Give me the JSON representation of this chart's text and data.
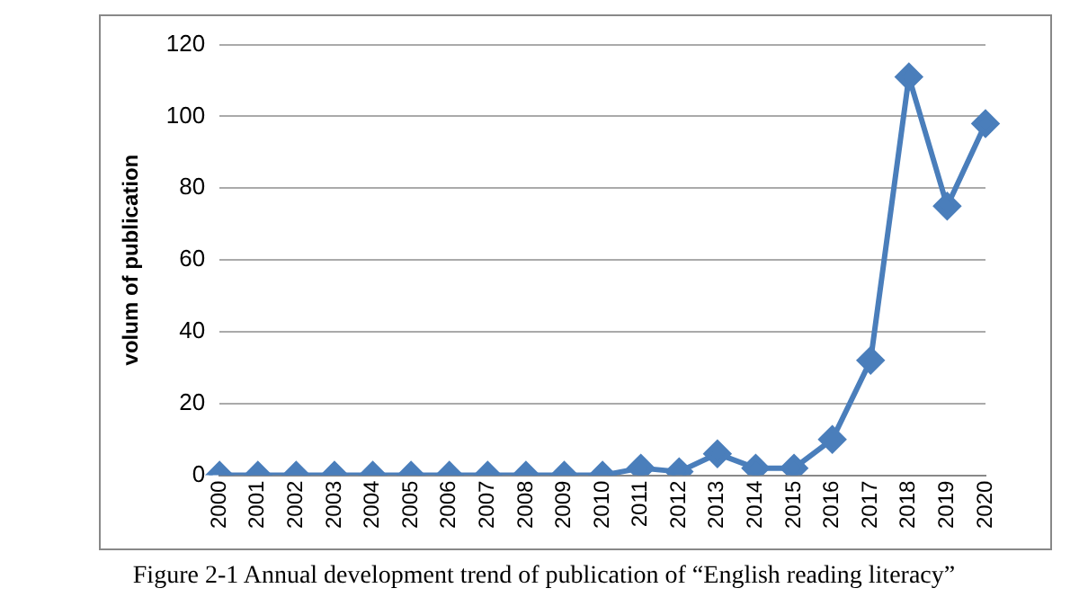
{
  "chart_data": {
    "type": "line",
    "categories": [
      "2000",
      "2001",
      "2002",
      "2003",
      "2004",
      "2005",
      "2006",
      "2007",
      "2008",
      "2009",
      "2010",
      "2011",
      "2012",
      "2013",
      "2014",
      "2015",
      "2016",
      "2017",
      "2018",
      "2019",
      "2020"
    ],
    "series": [
      {
        "color": "#4a7ebb",
        "values": [
          0,
          0,
          0,
          0,
          0,
          0,
          0,
          0,
          0,
          0,
          0,
          2,
          1,
          6,
          2,
          2,
          10,
          32,
          111,
          75,
          98
        ]
      }
    ],
    "ylabel": "volum of publication",
    "ylim": [
      0,
      120
    ],
    "yticks": [
      0,
      20,
      40,
      60,
      80,
      100,
      120
    ],
    "grid": "y",
    "legend": false,
    "marker": "diamond",
    "line_style": "solid",
    "annotations": [
      "Figure 2-1 Annual development trend of publication of “English reading literacy”"
    ]
  }
}
